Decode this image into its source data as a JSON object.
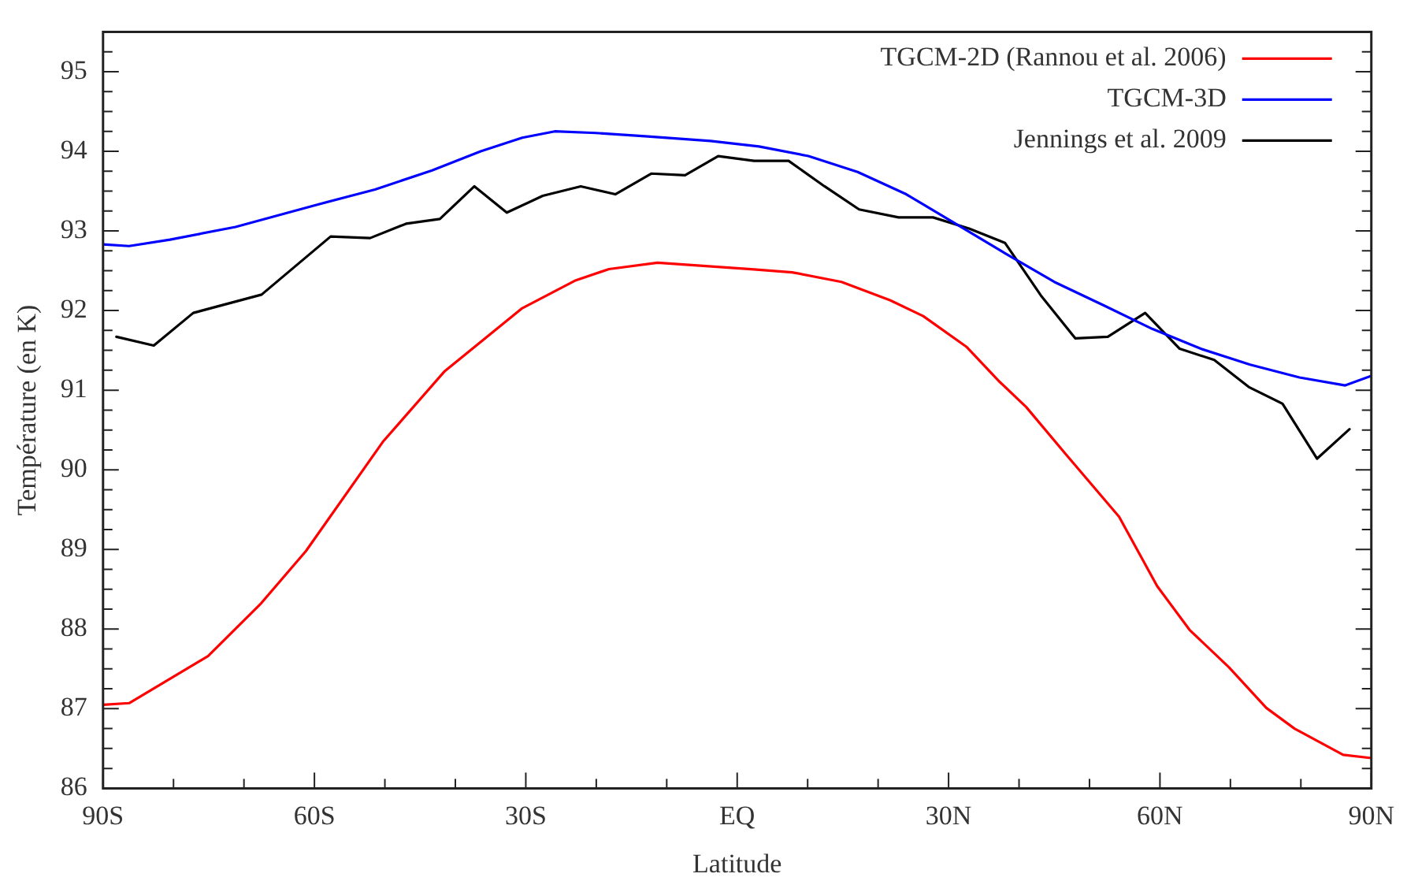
{
  "chart_data": {
    "type": "line",
    "xlabel": "Latitude",
    "ylabel": "Température (en K)",
    "xlim": [
      -90,
      90
    ],
    "ylim": [
      86,
      95.5
    ],
    "xticks": [
      {
        "value": -90,
        "label": "90S"
      },
      {
        "value": -80,
        "label": null
      },
      {
        "value": -70,
        "label": null
      },
      {
        "value": -60,
        "label": "60S"
      },
      {
        "value": -50,
        "label": null
      },
      {
        "value": -40,
        "label": null
      },
      {
        "value": -30,
        "label": "30S"
      },
      {
        "value": -20,
        "label": null
      },
      {
        "value": -10,
        "label": null
      },
      {
        "value": 0,
        "label": "EQ"
      },
      {
        "value": 10,
        "label": null
      },
      {
        "value": 20,
        "label": null
      },
      {
        "value": 30,
        "label": "30N"
      },
      {
        "value": 40,
        "label": null
      },
      {
        "value": 50,
        "label": null
      },
      {
        "value": 60,
        "label": "60N"
      },
      {
        "value": 70,
        "label": null
      },
      {
        "value": 80,
        "label": null
      },
      {
        "value": 90,
        "label": "90N"
      }
    ],
    "yticks": [
      86,
      {
        "value": 86.25,
        "label": null
      },
      {
        "value": 86.5,
        "label": null
      },
      {
        "value": 86.75,
        "label": null
      },
      87,
      {
        "value": 87.25,
        "label": null
      },
      {
        "value": 87.5,
        "label": null
      },
      {
        "value": 87.75,
        "label": null
      },
      88,
      {
        "value": 88.25,
        "label": null
      },
      {
        "value": 88.5,
        "label": null
      },
      {
        "value": 88.75,
        "label": null
      },
      89,
      {
        "value": 89.25,
        "label": null
      },
      {
        "value": 89.5,
        "label": null
      },
      {
        "value": 89.75,
        "label": null
      },
      90,
      {
        "value": 90.25,
        "label": null
      },
      {
        "value": 90.5,
        "label": null
      },
      {
        "value": 90.75,
        "label": null
      },
      91,
      {
        "value": 91.25,
        "label": null
      },
      {
        "value": 91.5,
        "label": null
      },
      {
        "value": 91.75,
        "label": null
      },
      92,
      {
        "value": 92.25,
        "label": null
      },
      {
        "value": 92.5,
        "label": null
      },
      {
        "value": 92.75,
        "label": null
      },
      93,
      {
        "value": 93.25,
        "label": null
      },
      {
        "value": 93.5,
        "label": null
      },
      {
        "value": 93.75,
        "label": null
      },
      94,
      {
        "value": 94.25,
        "label": null
      },
      {
        "value": 94.5,
        "label": null
      },
      {
        "value": 94.75,
        "label": null
      },
      95,
      {
        "value": 95.25,
        "label": null
      }
    ],
    "grid": false,
    "legend": "top right",
    "marker": "none",
    "line_style": "solid",
    "series": [
      {
        "name": "TGCM-2D (Rannou et al. 2006)",
        "color": "#ff0000",
        "x": [
          -90,
          -86.3,
          -75.1,
          -67.7,
          -61.2,
          -50.3,
          -41.5,
          -30.5,
          -22.9,
          -18.2,
          -11.3,
          2.0,
          7.8,
          14.8,
          21.7,
          26.4,
          32.6,
          37.3,
          41.0,
          46.6,
          54.2,
          59.6,
          64.2,
          69.8,
          75.1,
          79.1,
          86.0,
          90
        ],
        "values": [
          87.05,
          87.07,
          87.66,
          88.31,
          88.98,
          90.35,
          91.24,
          92.03,
          92.38,
          92.52,
          92.6,
          92.52,
          92.48,
          92.36,
          92.13,
          91.93,
          91.54,
          91.1,
          90.79,
          90.2,
          89.41,
          88.54,
          87.99,
          87.52,
          87.01,
          86.75,
          86.42,
          86.38
        ]
      },
      {
        "name": "TGCM-3D",
        "color": "#0000ff",
        "x": [
          -90,
          -86.3,
          -80.5,
          -71.2,
          -59.6,
          -51.4,
          -43.3,
          -36.4,
          -30.5,
          -25.9,
          -20.1,
          -13.1,
          -3.8,
          3.1,
          10.1,
          17.1,
          24.0,
          31.0,
          38.0,
          45.0,
          51.9,
          58.9,
          65.8,
          72.8,
          79.8,
          86.3,
          90
        ],
        "values": [
          92.83,
          92.81,
          92.89,
          93.05,
          93.33,
          93.52,
          93.76,
          94.0,
          94.17,
          94.25,
          94.23,
          94.19,
          94.13,
          94.06,
          93.94,
          93.74,
          93.46,
          93.09,
          92.72,
          92.36,
          92.07,
          91.77,
          91.52,
          91.32,
          91.16,
          91.06,
          91.18
        ]
      },
      {
        "name": "Jennings et al. 2009",
        "color": "#000000",
        "x": [
          -88.1,
          -82.8,
          -77.2,
          -67.5,
          -57.7,
          -52.1,
          -47.0,
          -42.2,
          -37.3,
          -32.7,
          -27.6,
          -22.2,
          -17.3,
          -12.2,
          -7.4,
          -2.7,
          2.4,
          7.3,
          12.4,
          17.3,
          22.9,
          27.8,
          32.9,
          38.0,
          43.1,
          48.0,
          52.6,
          57.9,
          62.8,
          67.7,
          72.6,
          77.4,
          82.3,
          86.9
        ],
        "values": [
          91.67,
          91.56,
          91.97,
          92.2,
          92.93,
          92.91,
          93.09,
          93.15,
          93.56,
          93.23,
          93.44,
          93.56,
          93.46,
          93.72,
          93.7,
          93.94,
          93.88,
          93.88,
          93.56,
          93.27,
          93.17,
          93.17,
          93.03,
          92.85,
          92.19,
          91.65,
          91.67,
          91.97,
          91.52,
          91.38,
          91.04,
          90.83,
          90.14,
          90.51
        ]
      }
    ]
  }
}
